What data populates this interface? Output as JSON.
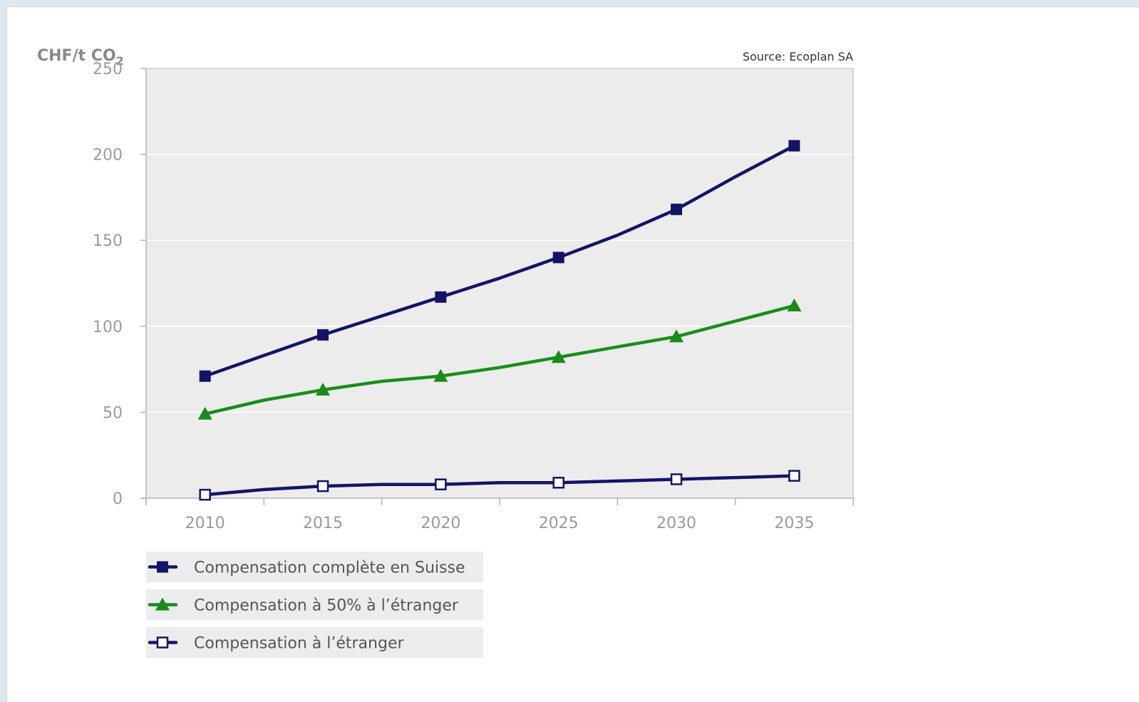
{
  "chart_data": {
    "type": "line",
    "ylabel": "CHF/t CO",
    "ylabel_sub": "2",
    "source": "Source: Ecoplan SA",
    "ylim": [
      0,
      250
    ],
    "yticks": [
      0,
      50,
      100,
      150,
      200,
      250
    ],
    "xlim": [
      2007.5,
      2037.5
    ],
    "xticks": [
      2010,
      2015,
      2020,
      2025,
      2030,
      2035
    ],
    "grid": true,
    "legend_position": "bottom-left",
    "series": [
      {
        "name": "Compensation complète en Suisse",
        "color": "#141466",
        "marker": "filled-square",
        "x": [
          2010,
          2012.5,
          2015,
          2017.5,
          2020,
          2022.5,
          2025,
          2027.5,
          2030,
          2032.5,
          2035
        ],
        "y": [
          71,
          83,
          95,
          106,
          117,
          128,
          140,
          153,
          168,
          187,
          205
        ],
        "marker_x": [
          2010,
          2015,
          2020,
          2025,
          2030,
          2035
        ]
      },
      {
        "name": "Compensation à 50% à l’étranger",
        "color": "#1a8c1a",
        "marker": "filled-triangle",
        "x": [
          2010,
          2012.5,
          2015,
          2017.5,
          2020,
          2022.5,
          2025,
          2027.5,
          2030,
          2032.5,
          2035
        ],
        "y": [
          49,
          57,
          63,
          68,
          71,
          76,
          82,
          88,
          94,
          103,
          112
        ],
        "marker_x": [
          2010,
          2015,
          2020,
          2025,
          2030,
          2035
        ]
      },
      {
        "name": "Compensation à l’étranger",
        "color": "#141466",
        "marker": "hollow-square",
        "x": [
          2010,
          2012.5,
          2015,
          2017.5,
          2020,
          2022.5,
          2025,
          2027.5,
          2030,
          2032.5,
          2035
        ],
        "y": [
          2,
          5,
          7,
          8,
          8,
          9,
          9,
          10,
          11,
          12,
          13
        ],
        "marker_x": [
          2010,
          2015,
          2020,
          2025,
          2030,
          2035
        ]
      }
    ]
  },
  "colors": {
    "plot_background": "#ececec",
    "legend_background": "#ececec",
    "gridline": "#ffffff",
    "axis": "#b5b5b5"
  }
}
